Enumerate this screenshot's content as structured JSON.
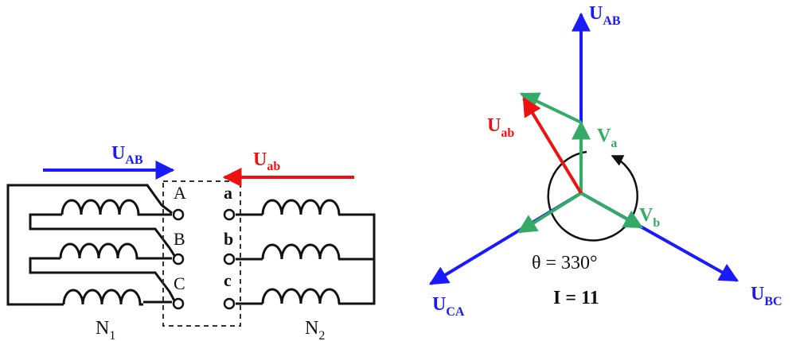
{
  "colors": {
    "blue": "#1a1aff",
    "red": "#ee1111",
    "green": "#33aa66",
    "black": "#111111"
  },
  "circuit": {
    "primary_arrow": {
      "main": "U",
      "sub": "AB"
    },
    "secondary_arrow": {
      "main": "U",
      "sub": "ab"
    },
    "primary_terminals": [
      "A",
      "B",
      "C"
    ],
    "secondary_terminals": [
      "a",
      "b",
      "c"
    ],
    "primary_winding": {
      "main": "N",
      "sub": "1"
    },
    "secondary_winding": {
      "main": "N",
      "sub": "2"
    }
  },
  "phasor": {
    "U_AB": {
      "main": "U",
      "sub": "AB"
    },
    "U_BC": {
      "main": "U",
      "sub": "BC"
    },
    "U_CA": {
      "main": "U",
      "sub": "CA"
    },
    "U_ab": {
      "main": "U",
      "sub": "ab"
    },
    "V_a": {
      "main": "V",
      "sub": "a"
    },
    "V_b": {
      "main": "V",
      "sub": "b"
    },
    "angle_text": "θ = 330°",
    "index_text": "I = 11"
  }
}
